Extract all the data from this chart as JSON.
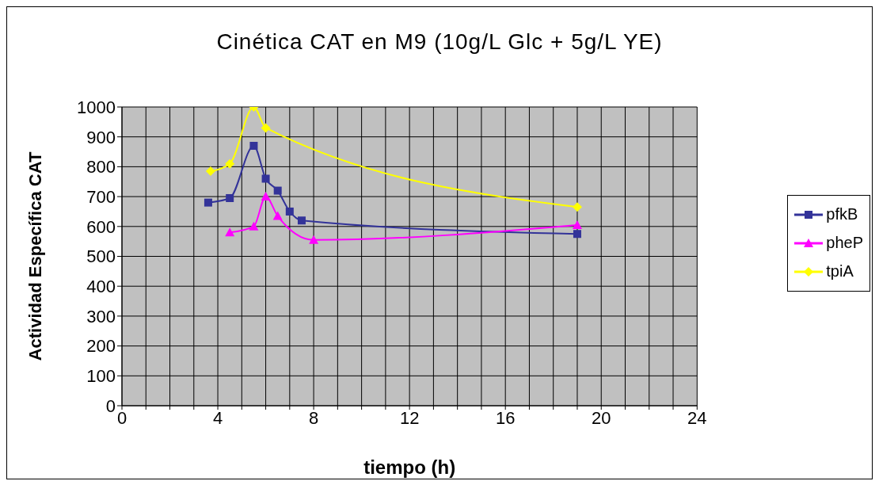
{
  "chart_data": {
    "type": "line",
    "title": "Cinética CAT en M9 (10g/L Glc + 5g/L YE)",
    "xlabel": "tiempo (h)",
    "ylabel": "Actividad Específica CAT",
    "series": [
      {
        "name": "pfkB",
        "color": "#333399",
        "marker": "square",
        "x": [
          3.6,
          4.5,
          5.5,
          6,
          6.5,
          7,
          7.5,
          19
        ],
        "values": [
          680,
          695,
          870,
          760,
          720,
          650,
          620,
          575
        ]
      },
      {
        "name": "pheP",
        "color": "#ff00ff",
        "marker": "triangle",
        "x": [
          4.5,
          5.5,
          6,
          6.5,
          8,
          19
        ],
        "values": [
          580,
          600,
          700,
          635,
          555,
          605
        ]
      },
      {
        "name": "tpiA",
        "color": "#ffff00",
        "marker": "diamond",
        "x": [
          3.7,
          4.5,
          5.5,
          6,
          19
        ],
        "values": [
          785,
          810,
          1000,
          930,
          665
        ]
      }
    ],
    "xlim": [
      0,
      24
    ],
    "xticks": [
      0,
      {
        "value": 1,
        "label": null
      },
      {
        "value": 2,
        "label": null
      },
      {
        "value": 3,
        "label": null
      },
      4,
      {
        "value": 5,
        "label": null
      },
      {
        "value": 6,
        "label": null
      },
      {
        "value": 7,
        "label": null
      },
      8,
      {
        "value": 9,
        "label": null
      },
      {
        "value": 10,
        "label": null
      },
      {
        "value": 11,
        "label": null
      },
      12,
      {
        "value": 13,
        "label": null
      },
      {
        "value": 14,
        "label": null
      },
      {
        "value": 15,
        "label": null
      },
      16,
      {
        "value": 17,
        "label": null
      },
      {
        "value": 18,
        "label": null
      },
      {
        "value": 19,
        "label": null
      },
      20,
      {
        "value": 21,
        "label": null
      },
      {
        "value": 22,
        "label": null
      },
      {
        "value": 23,
        "label": null
      },
      24
    ],
    "ylim": [
      0,
      1000
    ],
    "yticks": [
      0,
      100,
      200,
      300,
      400,
      500,
      600,
      700,
      800,
      900,
      1000
    ],
    "grid": true,
    "legend": "right",
    "line_style": "solid"
  }
}
